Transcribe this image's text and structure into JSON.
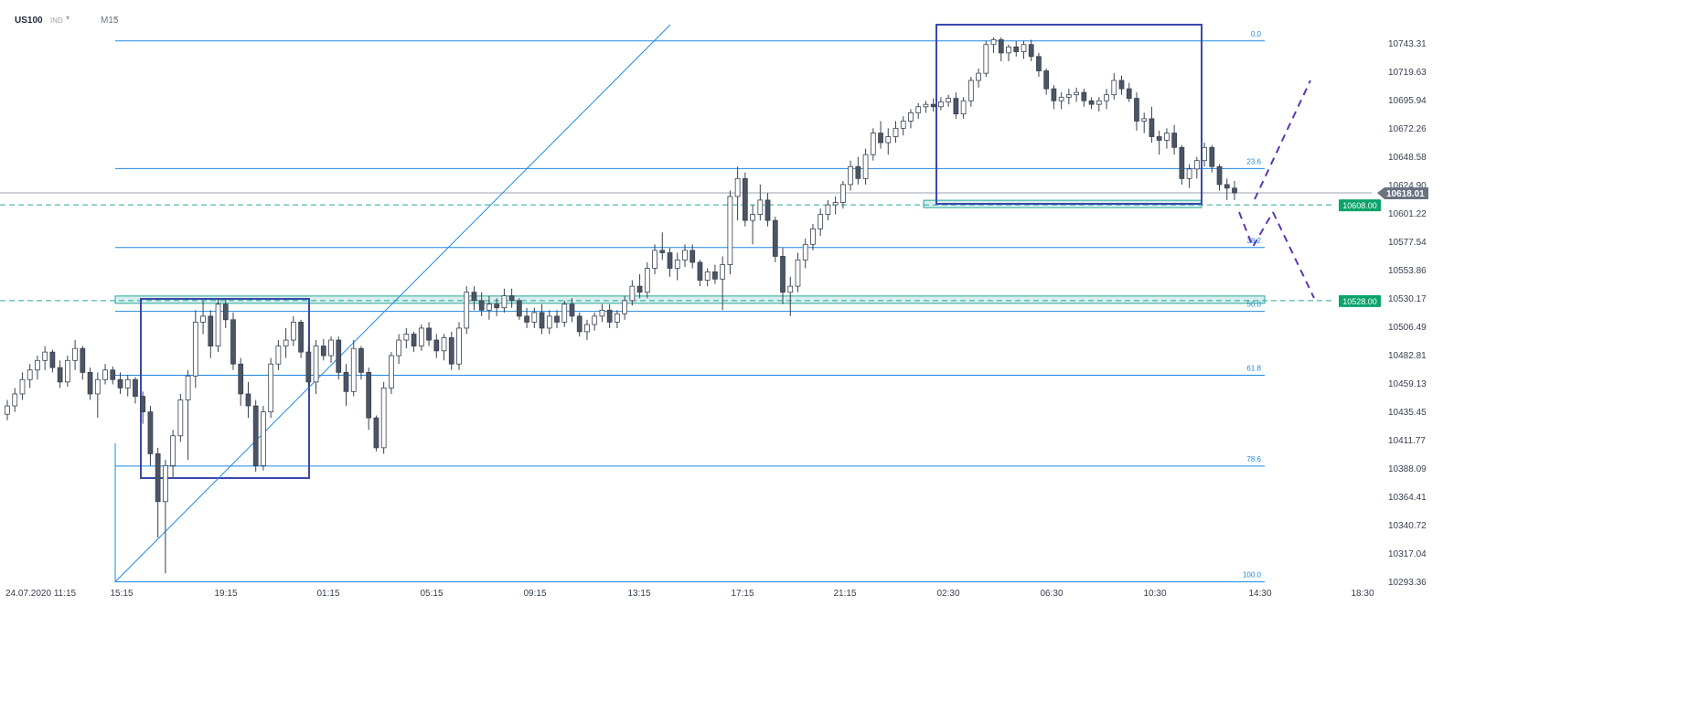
{
  "header": {
    "symbol": "US100",
    "exchange": "IND",
    "timeframe": "M15"
  },
  "chart_data": {
    "type": "candlestick",
    "symbol": "US100",
    "timeframe": "M15",
    "y_axis": {
      "range": [
        10290,
        10765
      ],
      "ticks": [
        "10743.31",
        "10719.63",
        "10695.94",
        "10672.26",
        "10648.58",
        "10624.90",
        "10601.22",
        "10577.54",
        "10553.86",
        "10530.17",
        "10506.49",
        "10482.81",
        "10459.13",
        "10435.45",
        "10411.77",
        "10388.09",
        "10364.41",
        "10340.72",
        "10317.04",
        "10293.36"
      ]
    },
    "x_axis": {
      "start_label": "24.07.2020  11:15",
      "ticks": [
        "15:15",
        "19:15",
        "01:15",
        "05:15",
        "09:15",
        "13:15",
        "17:15",
        "21:15",
        "02:30",
        "06:30",
        "10:30",
        "14:30",
        "18:30"
      ]
    },
    "current_price": {
      "value": 10618.01,
      "label": "10618.01"
    },
    "levels": [
      {
        "label": "10608.00",
        "value": 10608.0
      },
      {
        "label": "10528.00",
        "value": 10528.0
      }
    ],
    "fibonacci": {
      "high": 10745,
      "low": 10293,
      "levels": [
        {
          "label": "0.0",
          "ratio": 0.0
        },
        {
          "label": "23.6",
          "ratio": 0.236
        },
        {
          "label": "38.2",
          "ratio": 0.382
        },
        {
          "label": "50.0",
          "ratio": 0.5
        },
        {
          "label": "61.8",
          "ratio": 0.618
        },
        {
          "label": "78.6",
          "ratio": 0.786
        },
        {
          "label": "100.0",
          "ratio": 1.0
        }
      ]
    },
    "colors": {
      "bull_fill": "#ffffff",
      "bear_fill": "#4b5563",
      "candle_outline": "#374151",
      "fib": "#1e88e5",
      "box": "#3949ab",
      "zone": "#26a69a",
      "level_badge": "#0aa36b",
      "price_badge": "#6b7280",
      "projection": "#5e35b1"
    },
    "candles": [
      [
        10433,
        10445,
        10428,
        10440
      ],
      [
        10440,
        10455,
        10435,
        10450
      ],
      [
        10450,
        10468,
        10445,
        10462
      ],
      [
        10462,
        10475,
        10455,
        10470
      ],
      [
        10470,
        10482,
        10462,
        10478
      ],
      [
        10478,
        10490,
        10470,
        10485
      ],
      [
        10485,
        10487,
        10468,
        10472
      ],
      [
        10472,
        10478,
        10455,
        10460
      ],
      [
        10460,
        10482,
        10456,
        10478
      ],
      [
        10478,
        10495,
        10470,
        10488
      ],
      [
        10488,
        10490,
        10462,
        10468
      ],
      [
        10468,
        10472,
        10445,
        10450
      ],
      [
        10450,
        10468,
        10430,
        10462
      ],
      [
        10462,
        10475,
        10458,
        10470
      ],
      [
        10470,
        10473,
        10458,
        10462
      ],
      [
        10462,
        10468,
        10450,
        10455
      ],
      [
        10455,
        10466,
        10448,
        10462
      ],
      [
        10462,
        10464,
        10442,
        10448
      ],
      [
        10448,
        10452,
        10425,
        10435
      ],
      [
        10435,
        10440,
        10390,
        10400
      ],
      [
        10400,
        10405,
        10330,
        10360
      ],
      [
        10360,
        10395,
        10300,
        10390
      ],
      [
        10390,
        10420,
        10380,
        10415
      ],
      [
        10415,
        10450,
        10410,
        10445
      ],
      [
        10445,
        10470,
        10395,
        10465
      ],
      [
        10465,
        10520,
        10455,
        10510
      ],
      [
        10510,
        10528,
        10500,
        10515
      ],
      [
        10515,
        10520,
        10480,
        10490
      ],
      [
        10490,
        10530,
        10485,
        10525
      ],
      [
        10525,
        10530,
        10505,
        10512
      ],
      [
        10512,
        10518,
        10470,
        10475
      ],
      [
        10475,
        10480,
        10440,
        10450
      ],
      [
        10450,
        10460,
        10430,
        10440
      ],
      [
        10440,
        10445,
        10385,
        10390
      ],
      [
        10390,
        10440,
        10386,
        10435
      ],
      [
        10435,
        10480,
        10430,
        10475
      ],
      [
        10475,
        10495,
        10470,
        10490
      ],
      [
        10490,
        10505,
        10480,
        10495
      ],
      [
        10495,
        10515,
        10490,
        10510
      ],
      [
        10510,
        10512,
        10480,
        10485
      ],
      [
        10485,
        10490,
        10455,
        10460
      ],
      [
        10460,
        10495,
        10450,
        10490
      ],
      [
        10490,
        10496,
        10478,
        10482
      ],
      [
        10482,
        10498,
        10476,
        10495
      ],
      [
        10495,
        10498,
        10462,
        10468
      ],
      [
        10468,
        10475,
        10440,
        10452
      ],
      [
        10452,
        10495,
        10448,
        10488
      ],
      [
        10488,
        10490,
        10462,
        10468
      ],
      [
        10468,
        10472,
        10420,
        10430
      ],
      [
        10430,
        10432,
        10402,
        10405
      ],
      [
        10405,
        10460,
        10400,
        10455
      ],
      [
        10455,
        10485,
        10450,
        10482
      ],
      [
        10482,
        10500,
        10475,
        10495
      ],
      [
        10495,
        10505,
        10488,
        10500
      ],
      [
        10500,
        10502,
        10485,
        10490
      ],
      [
        10490,
        10508,
        10486,
        10505
      ],
      [
        10505,
        10510,
        10490,
        10495
      ],
      [
        10495,
        10500,
        10480,
        10486
      ],
      [
        10486,
        10500,
        10478,
        10497
      ],
      [
        10497,
        10502,
        10470,
        10475
      ],
      [
        10475,
        10510,
        10470,
        10505
      ],
      [
        10505,
        10540,
        10500,
        10535
      ],
      [
        10535,
        10540,
        10520,
        10528
      ],
      [
        10528,
        10535,
        10515,
        10520
      ],
      [
        10520,
        10532,
        10512,
        10525
      ],
      [
        10525,
        10530,
        10515,
        10522
      ],
      [
        10522,
        10538,
        10518,
        10532
      ],
      [
        10532,
        10538,
        10522,
        10528
      ],
      [
        10528,
        10530,
        10512,
        10515
      ],
      [
        10515,
        10522,
        10505,
        10510
      ],
      [
        10510,
        10522,
        10505,
        10518
      ],
      [
        10518,
        10525,
        10500,
        10505
      ],
      [
        10505,
        10520,
        10500,
        10515
      ],
      [
        10515,
        10520,
        10505,
        10510
      ],
      [
        10510,
        10528,
        10506,
        10525
      ],
      [
        10525,
        10530,
        10510,
        10515
      ],
      [
        10515,
        10518,
        10498,
        10502
      ],
      [
        10502,
        10512,
        10495,
        10508
      ],
      [
        10508,
        10518,
        10503,
        10515
      ],
      [
        10515,
        10525,
        10510,
        10520
      ],
      [
        10520,
        10525,
        10505,
        10510
      ],
      [
        10510,
        10520,
        10505,
        10517
      ],
      [
        10517,
        10532,
        10512,
        10528
      ],
      [
        10528,
        10545,
        10524,
        10540
      ],
      [
        10540,
        10550,
        10530,
        10535
      ],
      [
        10535,
        10560,
        10530,
        10555
      ],
      [
        10555,
        10575,
        10550,
        10570
      ],
      [
        10570,
        10585,
        10562,
        10568
      ],
      [
        10568,
        10572,
        10548,
        10555
      ],
      [
        10555,
        10568,
        10545,
        10562
      ],
      [
        10562,
        10575,
        10556,
        10570
      ],
      [
        10570,
        10575,
        10555,
        10560
      ],
      [
        10560,
        10562,
        10540,
        10545
      ],
      [
        10545,
        10555,
        10540,
        10552
      ],
      [
        10552,
        10558,
        10542,
        10546
      ],
      [
        10546,
        10565,
        10520,
        10558
      ],
      [
        10558,
        10620,
        10550,
        10615
      ],
      [
        10615,
        10640,
        10595,
        10630
      ],
      [
        10630,
        10635,
        10590,
        10595
      ],
      [
        10595,
        10608,
        10575,
        10600
      ],
      [
        10600,
        10625,
        10595,
        10612
      ],
      [
        10612,
        10618,
        10590,
        10595
      ],
      [
        10595,
        10598,
        10560,
        10565
      ],
      [
        10565,
        10572,
        10525,
        10535
      ],
      [
        10535,
        10548,
        10515,
        10540
      ],
      [
        10540,
        10568,
        10535,
        10562
      ],
      [
        10562,
        10580,
        10555,
        10575
      ],
      [
        10575,
        10592,
        10570,
        10588
      ],
      [
        10588,
        10605,
        10582,
        10600
      ],
      [
        10600,
        10612,
        10595,
        10608
      ],
      [
        10608,
        10615,
        10600,
        10610
      ],
      [
        10610,
        10628,
        10605,
        10625
      ],
      [
        10625,
        10645,
        10620,
        10640
      ],
      [
        10640,
        10648,
        10625,
        10630
      ],
      [
        10630,
        10655,
        10625,
        10650
      ],
      [
        10650,
        10672,
        10645,
        10668
      ],
      [
        10668,
        10678,
        10655,
        10660
      ],
      [
        10660,
        10672,
        10650,
        10665
      ],
      [
        10665,
        10678,
        10660,
        10672
      ],
      [
        10672,
        10682,
        10666,
        10678
      ],
      [
        10678,
        10688,
        10672,
        10685
      ],
      [
        10685,
        10693,
        10680,
        10690
      ],
      [
        10690,
        10695,
        10685,
        10692
      ],
      [
        10692,
        10697,
        10686,
        10690
      ],
      [
        10690,
        10698,
        10687,
        10694
      ],
      [
        10694,
        10700,
        10690,
        10697
      ],
      [
        10697,
        10702,
        10680,
        10684
      ],
      [
        10684,
        10698,
        10680,
        10695
      ],
      [
        10695,
        10715,
        10690,
        10712
      ],
      [
        10712,
        10722,
        10706,
        10718
      ],
      [
        10718,
        10745,
        10715,
        10742
      ],
      [
        10742,
        10748,
        10735,
        10746
      ],
      [
        10746,
        10748,
        10728,
        10735
      ],
      [
        10735,
        10742,
        10728,
        10740
      ],
      [
        10740,
        10745,
        10732,
        10736
      ],
      [
        10736,
        10745,
        10730,
        10742
      ],
      [
        10742,
        10746,
        10728,
        10732
      ],
      [
        10732,
        10735,
        10715,
        10720
      ],
      [
        10720,
        10722,
        10700,
        10705
      ],
      [
        10705,
        10708,
        10688,
        10695
      ],
      [
        10695,
        10702,
        10688,
        10698
      ],
      [
        10698,
        10705,
        10692,
        10700
      ],
      [
        10700,
        10706,
        10694,
        10702
      ],
      [
        10702,
        10705,
        10690,
        10695
      ],
      [
        10695,
        10698,
        10688,
        10692
      ],
      [
        10692,
        10698,
        10686,
        10695
      ],
      [
        10695,
        10705,
        10688,
        10700
      ],
      [
        10700,
        10718,
        10696,
        10712
      ],
      [
        10712,
        10716,
        10700,
        10705
      ],
      [
        10705,
        10710,
        10694,
        10697
      ],
      [
        10697,
        10702,
        10670,
        10678
      ],
      [
        10678,
        10685,
        10668,
        10680
      ],
      [
        10680,
        10690,
        10660,
        10665
      ],
      [
        10665,
        10670,
        10650,
        10662
      ],
      [
        10662,
        10672,
        10655,
        10668
      ],
      [
        10668,
        10675,
        10650,
        10656
      ],
      [
        10656,
        10658,
        10625,
        10630
      ],
      [
        10630,
        10642,
        10622,
        10638
      ],
      [
        10638,
        10648,
        10630,
        10645
      ],
      [
        10645,
        10660,
        10640,
        10656
      ],
      [
        10656,
        10658,
        10635,
        10640
      ],
      [
        10640,
        10642,
        10620,
        10625
      ],
      [
        10625,
        10630,
        10612,
        10622
      ],
      [
        10622,
        10628,
        10612,
        10618
      ]
    ]
  }
}
